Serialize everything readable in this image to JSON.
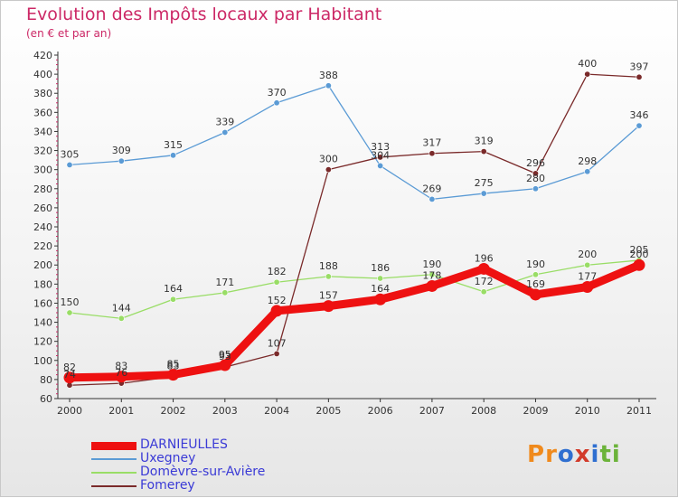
{
  "title": "Evolution des Impôts locaux par Habitant",
  "subtitle": "(en € et par an)",
  "logo": {
    "text": "Proxiti",
    "letters": [
      {
        "ch": "P",
        "color": "#f08a1c"
      },
      {
        "ch": "r",
        "color": "#f08a1c"
      },
      {
        "ch": "o",
        "color": "#2f6fd0"
      },
      {
        "ch": "x",
        "color": "#d23a2a"
      },
      {
        "ch": "i",
        "color": "#2f6fd0"
      },
      {
        "ch": "t",
        "color": "#6cb33a"
      },
      {
        "ch": "i",
        "color": "#6cb33a"
      }
    ]
  },
  "chart_data": {
    "type": "line",
    "title": "Evolution des Impôts locaux par Habitant",
    "subtitle": "(en € et par an)",
    "xlabel": "",
    "ylabel": "",
    "categories": [
      "2000",
      "2001",
      "2002",
      "2003",
      "2004",
      "2005",
      "2006",
      "2007",
      "2008",
      "2009",
      "2010",
      "2011"
    ],
    "ylim": [
      60,
      420
    ],
    "yticks": [
      60,
      80,
      100,
      120,
      140,
      160,
      180,
      200,
      220,
      240,
      260,
      280,
      300,
      320,
      340,
      360,
      380,
      400,
      420
    ],
    "grid": false,
    "legend_position": "bottom-left",
    "series": [
      {
        "name": "DARNIEULLES",
        "color": "#ee1111",
        "emphasis": true,
        "values": [
          82,
          83,
          85,
          95,
          152,
          157,
          164,
          178,
          196,
          169,
          177,
          200
        ]
      },
      {
        "name": "Uxegney",
        "color": "#5b9bd5",
        "values": [
          305,
          309,
          315,
          339,
          370,
          388,
          304,
          269,
          275,
          280,
          298,
          346
        ]
      },
      {
        "name": "Domèvre-sur-Avière",
        "color": "#99dd66",
        "values": [
          150,
          144,
          164,
          171,
          182,
          188,
          186,
          190,
          172,
          190,
          200,
          205
        ]
      },
      {
        "name": "Fomerey",
        "color": "#7a2a2a",
        "values": [
          74,
          76,
          83,
          93,
          107,
          300,
          313,
          317,
          319,
          296,
          400,
          397
        ]
      }
    ],
    "data_labels": [
      {
        "series": "DARNIEULLES",
        "texts": [
          "82",
          "83",
          "85",
          "95",
          "152",
          "157",
          "164",
          "178",
          "196",
          "169",
          "177",
          "200"
        ]
      },
      {
        "series": "Uxegney",
        "texts": [
          "305",
          "309",
          "315",
          "339",
          "370",
          "388",
          "304",
          "269",
          "275",
          "280",
          "298",
          "346"
        ]
      },
      {
        "series": "Domèvre-sur-Avière",
        "texts": [
          "150",
          "144",
          "164",
          "171",
          "182",
          "188",
          "186",
          "190",
          "172",
          "190",
          "200",
          "205"
        ]
      },
      {
        "series": "Fomerey",
        "texts": [
          "74",
          "76",
          "83",
          "93",
          "107",
          "300",
          "313",
          "317",
          "319",
          "296",
          "400",
          "397"
        ]
      }
    ]
  }
}
